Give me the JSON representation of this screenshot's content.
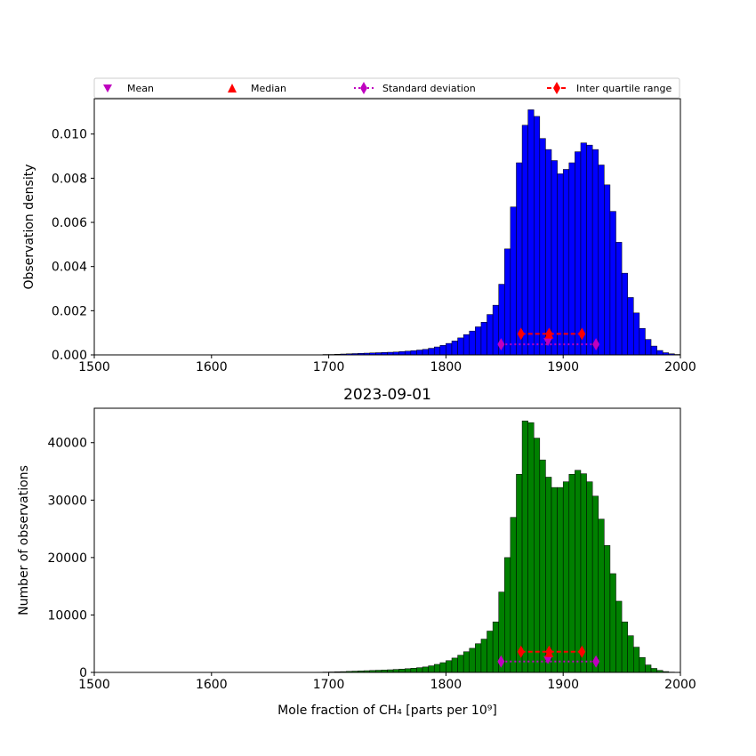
{
  "legend": {
    "placement": "top, above upper panel",
    "entries": [
      {
        "label": "Mean",
        "marker": "triangle-down",
        "color": "#bf00bf"
      },
      {
        "label": "Median",
        "marker": "triangle-up",
        "color": "#ff0000"
      },
      {
        "label": "Standard deviation",
        "marker": "thin-diamond",
        "line": "dotted",
        "color": "#bf00bf"
      },
      {
        "label": "Inter quartile range",
        "marker": "thin-diamond",
        "line": "dashed",
        "color": "#ff0000"
      }
    ]
  },
  "chart_data": [
    {
      "type": "bar",
      "panel": "top",
      "title": "",
      "xlabel": "",
      "ylabel": "Observation density",
      "xlim": [
        1500,
        2000
      ],
      "ylim": [
        0,
        0.0116
      ],
      "xticks": [
        "1500",
        "1600",
        "1700",
        "1800",
        "1900",
        "2000"
      ],
      "yticks": [
        "0.000",
        "0.002",
        "0.004",
        "0.006",
        "0.008",
        "0.010"
      ],
      "bar_color": "#0000ff",
      "bin_width": 5,
      "bin_start": 1690,
      "values": [
        1e-05,
        2e-05,
        2e-05,
        3e-05,
        4e-05,
        5e-05,
        6e-05,
        7e-05,
        8e-05,
        9e-05,
        0.0001,
        0.00011,
        0.00012,
        0.00013,
        0.00015,
        0.00017,
        0.00019,
        0.00022,
        0.00025,
        0.0003,
        0.00036,
        0.00043,
        0.00052,
        0.00063,
        0.00077,
        0.00092,
        0.00108,
        0.00127,
        0.00148,
        0.00183,
        0.00225,
        0.0032,
        0.0048,
        0.0067,
        0.0087,
        0.0104,
        0.0111,
        0.0108,
        0.0098,
        0.0093,
        0.0088,
        0.0082,
        0.0084,
        0.0087,
        0.0092,
        0.0096,
        0.0095,
        0.0093,
        0.0086,
        0.0077,
        0.0065,
        0.0051,
        0.0037,
        0.0026,
        0.0019,
        0.0012,
        0.0007,
        0.0004,
        0.0002,
        0.0001,
        5e-05,
        2e-05
      ],
      "markers": {
        "mean": {
          "x": 1887,
          "y": 0.0006
        },
        "median": {
          "x": 1888,
          "y": 0.0009
        },
        "std": {
          "x": [
            1847,
            1928
          ],
          "y": 0.00048
        },
        "iqr": {
          "x": [
            1864,
            1888,
            1916
          ],
          "y": 0.00095
        }
      }
    },
    {
      "type": "bar",
      "panel": "bottom",
      "title": "2023-09-01",
      "xlabel": "Mole fraction of CH₄ [parts per 10⁹]",
      "ylabel": "Number of observations",
      "xlim": [
        1500,
        2000
      ],
      "ylim": [
        0,
        46000
      ],
      "xticks": [
        "1500",
        "1600",
        "1700",
        "1800",
        "1900",
        "2000"
      ],
      "yticks": [
        "0",
        "10000",
        "20000",
        "30000",
        "40000"
      ],
      "bar_color": "#008000",
      "bin_width": 5,
      "bin_start": 1690,
      "values": [
        40,
        60,
        80,
        110,
        140,
        180,
        220,
        260,
        300,
        340,
        380,
        420,
        460,
        520,
        580,
        650,
        730,
        830,
        950,
        1150,
        1400,
        1700,
        2050,
        2500,
        3000,
        3600,
        4200,
        5000,
        5800,
        7200,
        8800,
        14000,
        20000,
        27000,
        34500,
        43800,
        43500,
        40800,
        37000,
        34000,
        32200,
        32200,
        33200,
        34500,
        35200,
        34600,
        33200,
        30700,
        26700,
        22100,
        17200,
        12400,
        8800,
        6400,
        4400,
        2600,
        1300,
        700,
        350,
        150,
        60,
        20
      ],
      "markers": {
        "mean": {
          "x": 1887,
          "y": 2200
        },
        "median": {
          "x": 1888,
          "y": 3300
        },
        "std": {
          "x": [
            1847,
            1928
          ],
          "y": 1900
        },
        "iqr": {
          "x": [
            1864,
            1888,
            1916
          ],
          "y": 3600
        }
      }
    }
  ]
}
